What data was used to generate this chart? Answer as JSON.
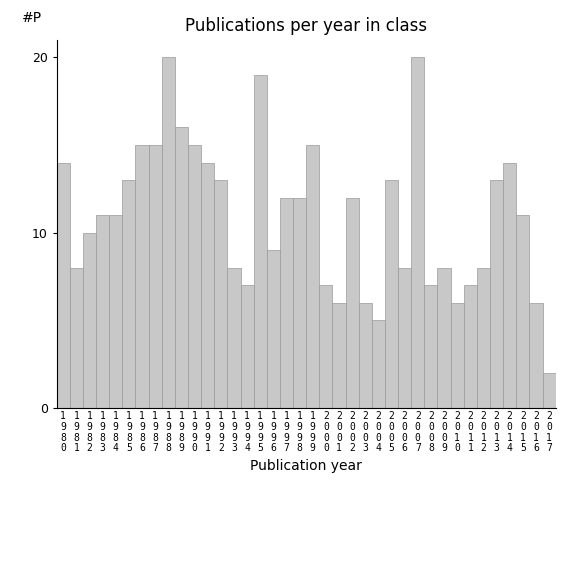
{
  "title": "Publications per year in class",
  "xlabel": "Publication year",
  "ylabel": "#P",
  "years": [
    1980,
    1981,
    1982,
    1983,
    1984,
    1985,
    1986,
    1987,
    1988,
    1989,
    1990,
    1991,
    1992,
    1993,
    1994,
    1995,
    1996,
    1997,
    1998,
    1999,
    2000,
    2001,
    2002,
    2003,
    2004,
    2005,
    2006,
    2007,
    2008,
    2009,
    2010,
    2011,
    2012,
    2013,
    2014,
    2015,
    2016,
    2017
  ],
  "values": [
    14,
    8,
    10,
    11,
    11,
    13,
    15,
    15,
    20,
    16,
    15,
    14,
    13,
    8,
    7,
    19,
    9,
    12,
    12,
    15,
    7,
    6,
    12,
    6,
    5,
    13,
    8,
    20,
    7,
    8,
    6,
    7,
    8,
    13,
    14,
    11,
    6,
    2
  ],
  "bar_color": "#c8c8c8",
  "bar_edge_color": "#999999",
  "ylim": [
    0,
    21
  ],
  "yticks": [
    0,
    10,
    20
  ],
  "background_color": "#ffffff",
  "title_fontsize": 12,
  "label_fontsize": 10,
  "tick_fontsize": 9
}
